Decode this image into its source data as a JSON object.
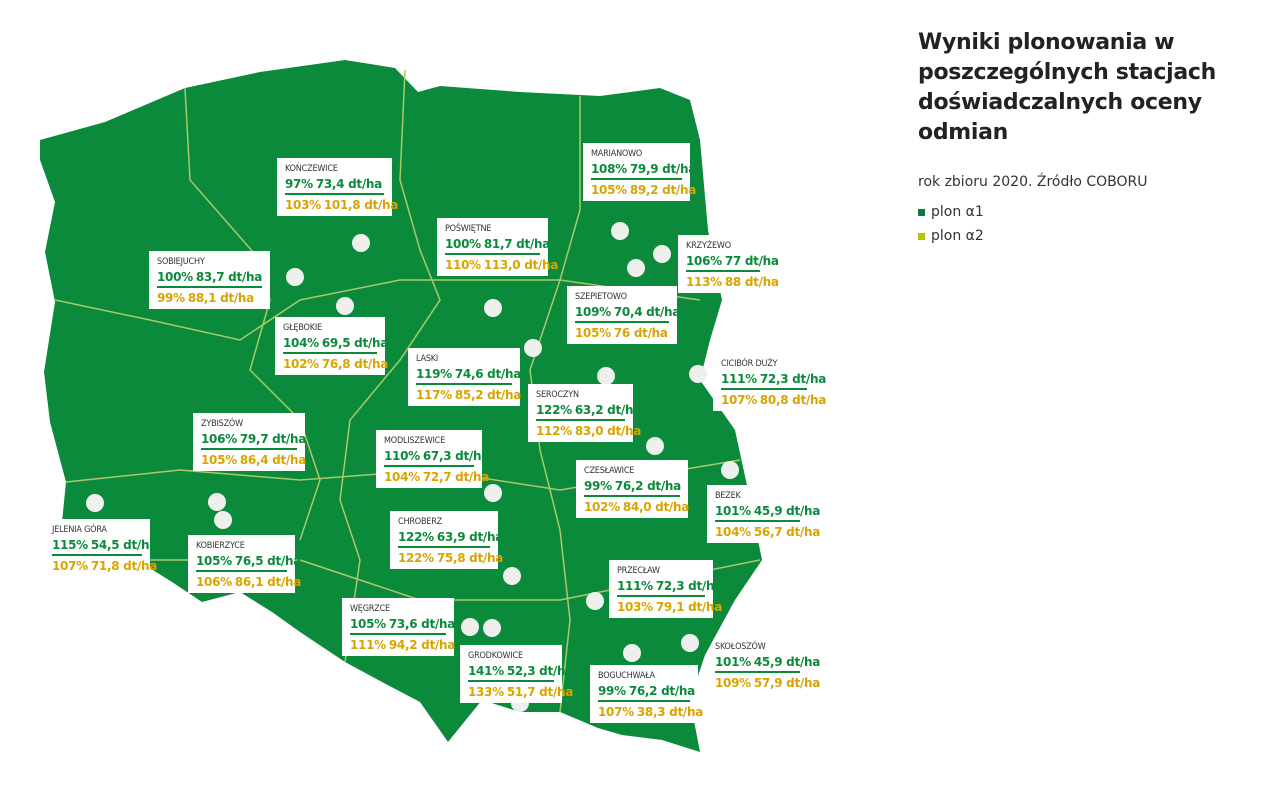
{
  "title": "Wyniki plonowania w poszczególnych stacjach doświadczalnych oceny odmian",
  "subtitle": "rok zbioru 2020. Źródło COBORU",
  "legend": [
    {
      "label": "plon α1",
      "color": "#0b7a3b"
    },
    {
      "label": "plon α2",
      "color": "#b7c400"
    }
  ],
  "stations": [
    {
      "name": "KOŃCZEWICE",
      "a1_pct": "97%",
      "a1_yield": "73,4 dt/ha",
      "a2_pct": "103%",
      "a2_yield": "101,8 dt/ha"
    },
    {
      "name": "MARIANOWO",
      "a1_pct": "108%",
      "a1_yield": "79,9 dt/ha",
      "a2_pct": "105%",
      "a2_yield": "89,2 dt/ha"
    },
    {
      "name": "POŚWIĘTNE",
      "a1_pct": "100%",
      "a1_yield": "81,7 dt/ha",
      "a2_pct": "110%",
      "a2_yield": "113,0 dt/ha"
    },
    {
      "name": "KRZYŻEWO",
      "a1_pct": "106%",
      "a1_yield": "77 dt/ha",
      "a2_pct": "113%",
      "a2_yield": "88 dt/ha"
    },
    {
      "name": "SOBIEJUCHY",
      "a1_pct": "100%",
      "a1_yield": "83,7 dt/ha",
      "a2_pct": "99%",
      "a2_yield": "88,1 dt/ha"
    },
    {
      "name": "SZEPIETOWO",
      "a1_pct": "109%",
      "a1_yield": "70,4 dt/ha",
      "a2_pct": "105%",
      "a2_yield": "76 dt/ha"
    },
    {
      "name": "GŁĘBOKIE",
      "a1_pct": "104%",
      "a1_yield": "69,5 dt/ha",
      "a2_pct": "102%",
      "a2_yield": "76,8 dt/ha"
    },
    {
      "name": "LASKI",
      "a1_pct": "119%",
      "a1_yield": "74,6 dt/ha",
      "a2_pct": "117%",
      "a2_yield": "85,2 dt/ha"
    },
    {
      "name": "CICIBÓR DUŻY",
      "a1_pct": "111%",
      "a1_yield": "72,3 dt/ha",
      "a2_pct": "107%",
      "a2_yield": "80,8 dt/ha"
    },
    {
      "name": "SEROCZYN",
      "a1_pct": "122%",
      "a1_yield": "63,2 dt/ha",
      "a2_pct": "112%",
      "a2_yield": "83,0 dt/ha"
    },
    {
      "name": "ZYBISZÓW",
      "a1_pct": "106%",
      "a1_yield": "79,7 dt/ha",
      "a2_pct": "105%",
      "a2_yield": "86,4 dt/ha"
    },
    {
      "name": "MODLISZEWICE",
      "a1_pct": "110%",
      "a1_yield": "67,3 dt/ha",
      "a2_pct": "104%",
      "a2_yield": "72,7 dt/ha"
    },
    {
      "name": "CZESŁAWICE",
      "a1_pct": "99%",
      "a1_yield": "76,2 dt/ha",
      "a2_pct": "102%",
      "a2_yield": "84,0 dt/ha"
    },
    {
      "name": "BEZEK",
      "a1_pct": "101%",
      "a1_yield": "45,9 dt/ha",
      "a2_pct": "104%",
      "a2_yield": "56,7 dt/ha"
    },
    {
      "name": "JELENIA GÓRA",
      "a1_pct": "115%",
      "a1_yield": "54,5 dt/ha",
      "a2_pct": "107%",
      "a2_yield": "71,8 dt/ha"
    },
    {
      "name": "KOBIERZYCE",
      "a1_pct": "105%",
      "a1_yield": "76,5 dt/ha",
      "a2_pct": "106%",
      "a2_yield": "86,1 dt/ha"
    },
    {
      "name": "CHROBERZ",
      "a1_pct": "122%",
      "a1_yield": "63,9 dt/ha",
      "a2_pct": "122%",
      "a2_yield": "75,8 dt/ha"
    },
    {
      "name": "PRZECŁAW",
      "a1_pct": "111%",
      "a1_yield": "72,3 dt/ha",
      "a2_pct": "103%",
      "a2_yield": "79,1 dt/ha"
    },
    {
      "name": "WĘGRZCE",
      "a1_pct": "105%",
      "a1_yield": "73,6 dt/ha",
      "a2_pct": "111%",
      "a2_yield": "94,2 dt/ha"
    },
    {
      "name": "SKOŁOSZÓW",
      "a1_pct": "101%",
      "a1_yield": "45,9 dt/ha",
      "a2_pct": "109%",
      "a2_yield": "57,9 dt/ha"
    },
    {
      "name": "GRODKOWICE",
      "a1_pct": "141%",
      "a1_yield": "52,3 dt/ha",
      "a2_pct": "133%",
      "a2_yield": "51,7 dt/ha"
    },
    {
      "name": "BOGUCHWAŁA",
      "a1_pct": "99%",
      "a1_yield": "76,2 dt/ha",
      "a2_pct": "107%",
      "a2_yield": "38,3 dt/ha"
    }
  ]
}
